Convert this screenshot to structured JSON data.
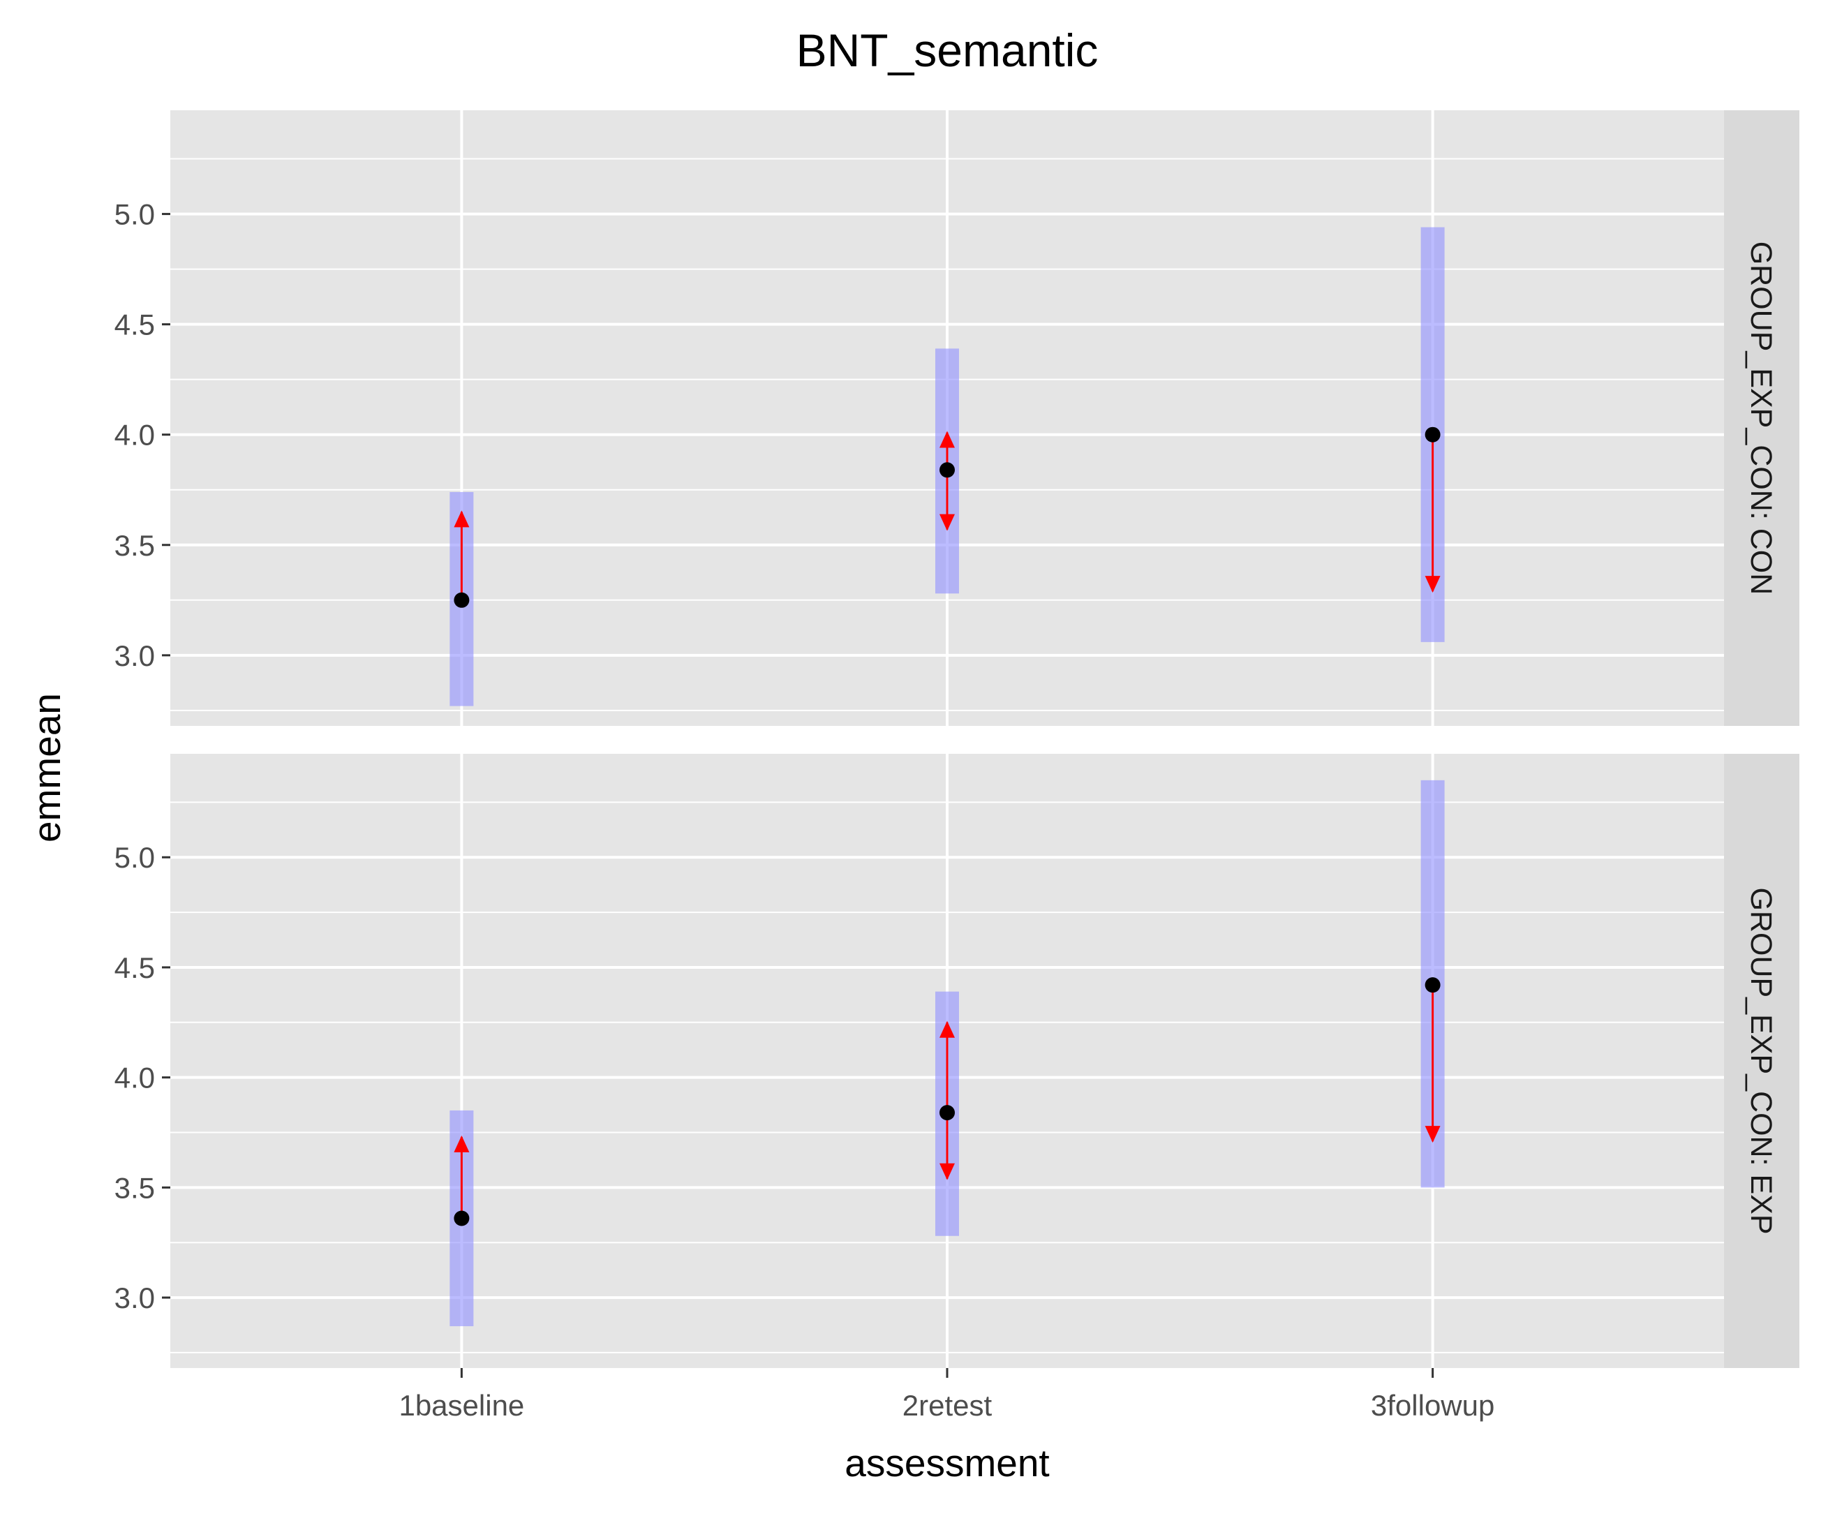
{
  "chart_data": {
    "type": "scatter",
    "title": "BNT_semantic",
    "xlabel": "assessment",
    "ylabel": "emmean",
    "categories": [
      "1baseline",
      "2retest",
      "3followup"
    ],
    "yticks": [
      "3.0",
      "3.5",
      "4.0",
      "4.5",
      "5.0"
    ],
    "ylim": [
      2.68,
      5.47
    ],
    "grid": true,
    "facets": [
      {
        "label": "GROUP_EXP_CON: CON",
        "emmean": [
          3.25,
          3.84,
          4.0
        ],
        "ci_lower": [
          2.77,
          3.28,
          3.06
        ],
        "ci_upper": [
          3.74,
          4.39,
          4.94
        ],
        "comparison_arrows": [
          {
            "from": 3.25,
            "to": 3.65
          },
          {
            "from": 3.84,
            "to": 4.01
          },
          {
            "from": 3.84,
            "to": 3.57
          },
          {
            "from": 4.0,
            "to": 3.29
          }
        ]
      },
      {
        "label": "GROUP_EXP_CON: EXP",
        "emmean": [
          3.36,
          3.84,
          4.42
        ],
        "ci_lower": [
          2.87,
          3.28,
          3.5
        ],
        "ci_upper": [
          3.85,
          4.39,
          5.35
        ],
        "comparison_arrows": [
          {
            "from": 3.36,
            "to": 3.73
          },
          {
            "from": 3.84,
            "to": 4.25
          },
          {
            "from": 3.84,
            "to": 3.54
          },
          {
            "from": 4.42,
            "to": 3.71
          }
        ]
      }
    ],
    "colors": {
      "panel_background": "#e5e5e5",
      "grid": "#ffffff",
      "strip_background": "#d9d9d9",
      "ci_bar": "#8f8fff",
      "point": "#000000",
      "arrow": "#ff0000"
    }
  }
}
